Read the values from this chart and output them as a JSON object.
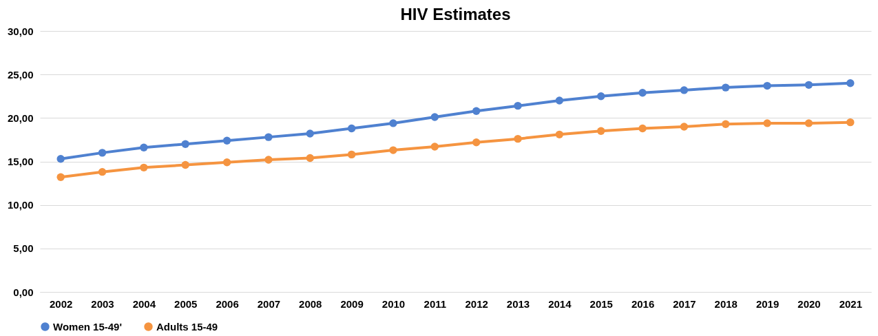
{
  "chart_data": {
    "type": "line",
    "title": "HIV Estimates",
    "categories": [
      "2002",
      "2003",
      "2004",
      "2005",
      "2006",
      "2007",
      "2008",
      "2009",
      "2010",
      "2011",
      "2012",
      "2013",
      "2014",
      "2015",
      "2016",
      "2017",
      "2018",
      "2019",
      "2020",
      "2021"
    ],
    "series": [
      {
        "name": "Women 15-49'",
        "color": "#4f81d0",
        "values": [
          15.3,
          16.0,
          16.6,
          17.0,
          17.4,
          17.8,
          18.2,
          18.8,
          19.4,
          20.1,
          20.8,
          21.4,
          22.0,
          22.5,
          22.9,
          23.2,
          23.5,
          23.7,
          23.8,
          24.0
        ]
      },
      {
        "name": "Adults 15-49",
        "color": "#f59440",
        "values": [
          13.2,
          13.8,
          14.3,
          14.6,
          14.9,
          15.2,
          15.4,
          15.8,
          16.3,
          16.7,
          17.2,
          17.6,
          18.1,
          18.5,
          18.8,
          19.0,
          19.3,
          19.4,
          19.4,
          19.5
        ]
      }
    ],
    "ylim": [
      0,
      30
    ],
    "yticks": [
      {
        "value": 0,
        "label": "0,00"
      },
      {
        "value": 5,
        "label": "5,00"
      },
      {
        "value": 10,
        "label": "10,00"
      },
      {
        "value": 15,
        "label": "15,00"
      },
      {
        "value": 20,
        "label": "20,00"
      },
      {
        "value": 25,
        "label": "25,00"
      },
      {
        "value": 30,
        "label": "30,00"
      }
    ],
    "grid": "y",
    "legend": "bottom",
    "marker": "circle",
    "line_style": "solid"
  }
}
